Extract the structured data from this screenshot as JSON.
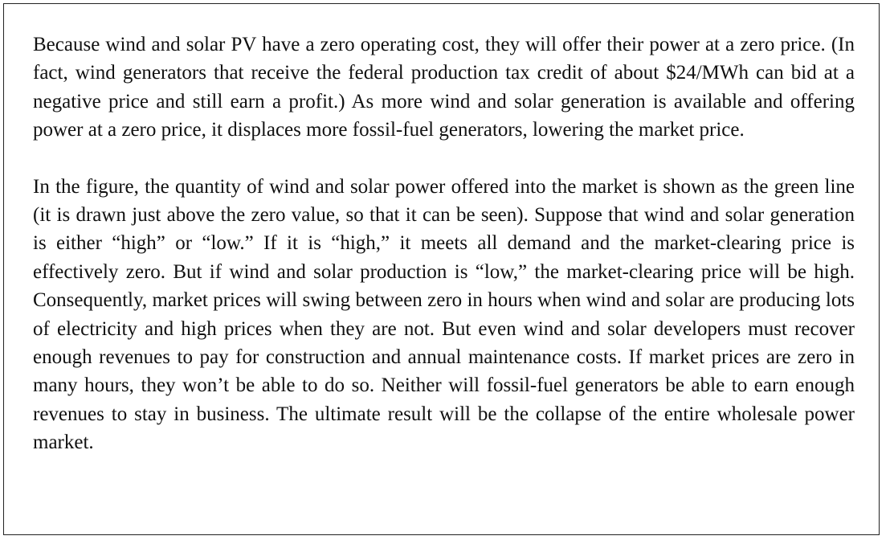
{
  "paragraphs": [
    "Because wind and solar PV have a zero operating cost, they will offer their power at a zero price. (In fact, wind generators that receive the federal production tax credit of about $24/MWh can bid at a negative price and still earn a profit.) As more wind and solar gener­ation is available and offering power at a zero price, it displaces more fossil-fuel genera­tors, lowering the market price.",
    "In the figure, the quantity of wind and solar power offered into the market is shown as the green line (it is drawn just above the zero value, so that it can be seen). Suppose that wind and solar generation is either “high” or “low.” If it is “high,” it meets all demand and the market-clearing price is effectively zero. But if wind and solar production is “low,” the market-clearing price will be high. Consequently, market prices will swing between zero in hours when wind and solar are producing lots of electricity and high prices when they are not. But even wind and solar developers must recover enough revenues to pay for construction and annual maintenance costs. If market prices are zero in many hours, they won’t be able to do so. Neither will fossil-fuel generators be able to earn enough rev­enues to stay in business. The ultimate result will be the collapse of the entire wholesale power market."
  ]
}
